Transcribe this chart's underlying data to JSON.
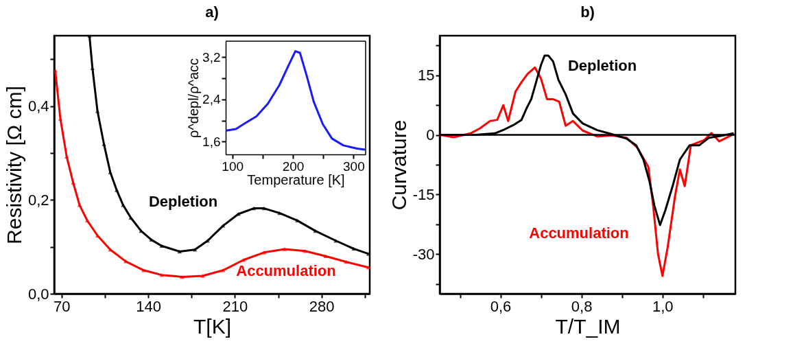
{
  "chart_data": [
    {
      "type": "line",
      "title": "a)",
      "xlabel": "T[K]",
      "ylabel": "Resistivity [Ω cm]",
      "xlim": [
        64,
        319
      ],
      "ylim": [
        0,
        0.55
      ],
      "xticks": [
        70,
        {
          "value": 105,
          "label": null
        },
        140,
        {
          "value": 175,
          "label": null
        },
        210,
        {
          "value": 245,
          "label": null
        },
        280,
        {
          "value": 315,
          "label": null
        }
      ],
      "yticks": [
        {
          "value": 0,
          "label": "0,0"
        },
        {
          "value": 0.1,
          "label": null
        },
        {
          "value": 0.2,
          "label": "0,2"
        },
        {
          "value": 0.3,
          "label": null
        },
        {
          "value": 0.4,
          "label": "0,4"
        },
        {
          "value": 0.5,
          "label": null
        }
      ],
      "grid": false,
      "marker": "triangle",
      "series": [
        {
          "name": "Depletion",
          "color": "#000000",
          "x": [
            92.5,
            94.9,
            99,
            104.2,
            109.3,
            114.5,
            119.7,
            125.9,
            134.2,
            142.5,
            150.8,
            165.3,
            177.7,
            188,
            200.5,
            212.9,
            225.3,
            233.6,
            246,
            260.5,
            275,
            291.6,
            306,
            318
          ],
          "values": [
            0.55,
            0.481,
            0.389,
            0.319,
            0.259,
            0.221,
            0.189,
            0.162,
            0.134,
            0.115,
            0.102,
            0.09,
            0.094,
            0.113,
            0.145,
            0.17,
            0.182,
            0.182,
            0.172,
            0.156,
            0.134,
            0.113,
            0.096,
            0.085
          ]
        },
        {
          "name": "Accumulation",
          "color": "#ff0000",
          "x": [
            64.8,
            69,
            74.1,
            79.3,
            84.5,
            90.7,
            99,
            109.3,
            121.8,
            136.3,
            150.8,
            167.3,
            183.9,
            200.5,
            217,
            233.6,
            250.2,
            266.7,
            283.3,
            299.8,
            318
          ],
          "values": [
            0.476,
            0.373,
            0.292,
            0.237,
            0.189,
            0.156,
            0.124,
            0.094,
            0.069,
            0.05,
            0.04,
            0.036,
            0.038,
            0.05,
            0.072,
            0.088,
            0.095,
            0.091,
            0.08,
            0.068,
            0.056
          ]
        }
      ]
    },
    {
      "type": "line",
      "xlabel": "Temperature [K]",
      "ylabel": "ρ^depl/ρ^acc",
      "xlim": [
        89,
        320
      ],
      "ylim": [
        1.36,
        3.5
      ],
      "xticks": [
        100,
        {
          "value": 150,
          "label": null
        },
        200,
        {
          "value": 250,
          "label": null
        },
        300
      ],
      "yticks": [
        {
          "value": 1.6,
          "label": "1,6"
        },
        {
          "value": 2.0,
          "label": null
        },
        {
          "value": 2.4,
          "label": "2,4"
        },
        {
          "value": 2.8,
          "label": null
        },
        {
          "value": 3.2,
          "label": "3,2"
        }
      ],
      "grid": false,
      "series": [
        {
          "color": "#1a1aff",
          "x": [
            90,
            105.9,
            121,
            139.8,
            158.7,
            177.6,
            192.7,
            204,
            211.6,
            222.9,
            234.2,
            249.3,
            264.4,
            283.3,
            306,
            319
          ],
          "values": [
            1.81,
            1.84,
            1.95,
            2.08,
            2.32,
            2.67,
            3.04,
            3.31,
            3.28,
            2.84,
            2.36,
            1.93,
            1.66,
            1.53,
            1.47,
            1.45
          ]
        }
      ]
    },
    {
      "type": "line",
      "title": "b)",
      "xlabel": "T/T_IM",
      "ylabel": "Curvature",
      "xlim": [
        0.45,
        1.18
      ],
      "ylim": [
        -40,
        25
      ],
      "xticks": [
        {
          "value": 0.5,
          "label": null
        },
        {
          "value": 0.6,
          "label": "0,6"
        },
        {
          "value": 0.7,
          "label": null
        },
        {
          "value": 0.8,
          "label": "0,8"
        },
        {
          "value": 0.9,
          "label": null
        },
        {
          "value": 1.0,
          "label": "1,0"
        },
        {
          "value": 1.1,
          "label": null
        }
      ],
      "yticks": [
        {
          "value": -37.5,
          "label": null
        },
        -30,
        {
          "value": -22.5,
          "label": null
        },
        -15,
        {
          "value": -7.5,
          "label": null
        },
        0,
        {
          "value": 7.5,
          "label": null
        },
        15,
        {
          "value": 22.5,
          "label": null
        }
      ],
      "grid": false,
      "ref_lines": [
        {
          "axis": "y",
          "value": 0,
          "color": "#000000"
        }
      ],
      "series": [
        {
          "name": "Accumulation",
          "color": "#ff0000",
          "x": [
            0.451,
            0.484,
            0.526,
            0.55,
            0.574,
            0.592,
            0.607,
            0.619,
            0.637,
            0.652,
            0.667,
            0.685,
            0.7,
            0.715,
            0.73,
            0.745,
            0.761,
            0.779,
            0.803,
            0.839,
            0.875,
            0.911,
            0.938,
            0.965,
            0.977,
            0.989,
            1.0,
            1.013,
            1.031,
            1.043,
            1.055,
            1.07,
            1.103,
            1.121,
            1.14,
            1.176
          ],
          "values": [
            0,
            -0.6,
            0.4,
            1.7,
            3.5,
            3.8,
            7.5,
            3.5,
            10.9,
            13.3,
            15.4,
            17.0,
            14.2,
            9.0,
            9.0,
            8.4,
            2.3,
            3.5,
            1.1,
            -0.4,
            -0.1,
            -0.7,
            -3.2,
            -8.0,
            -17.8,
            -30.0,
            -35.5,
            -28.2,
            -15.4,
            -8.7,
            -12.9,
            -2.6,
            -1.3,
            0.5,
            -1.6,
            0.2
          ]
        },
        {
          "name": "Depletion",
          "color": "#000000",
          "x": [
            0.451,
            0.538,
            0.586,
            0.61,
            0.634,
            0.652,
            0.664,
            0.676,
            0.688,
            0.7,
            0.709,
            0.718,
            0.73,
            0.743,
            0.761,
            0.779,
            0.803,
            0.839,
            0.875,
            0.911,
            0.935,
            0.953,
            0.968,
            0.98,
            0.994,
            1.007,
            1.025,
            1.043,
            1.067,
            1.091,
            1.115,
            1.146,
            1.176
          ],
          "values": [
            0,
            0,
            0.4,
            1.4,
            2.6,
            3.8,
            6.6,
            9.0,
            13.3,
            17.6,
            20.0,
            20.0,
            18.5,
            13.9,
            10.2,
            5.4,
            2.9,
            1.2,
            0.2,
            -0.9,
            -2.6,
            -6.2,
            -11.7,
            -17.8,
            -22.7,
            -19.0,
            -12.9,
            -6.2,
            -2.6,
            -2.6,
            -0.7,
            -0.2,
            0.4
          ]
        }
      ]
    }
  ]
}
